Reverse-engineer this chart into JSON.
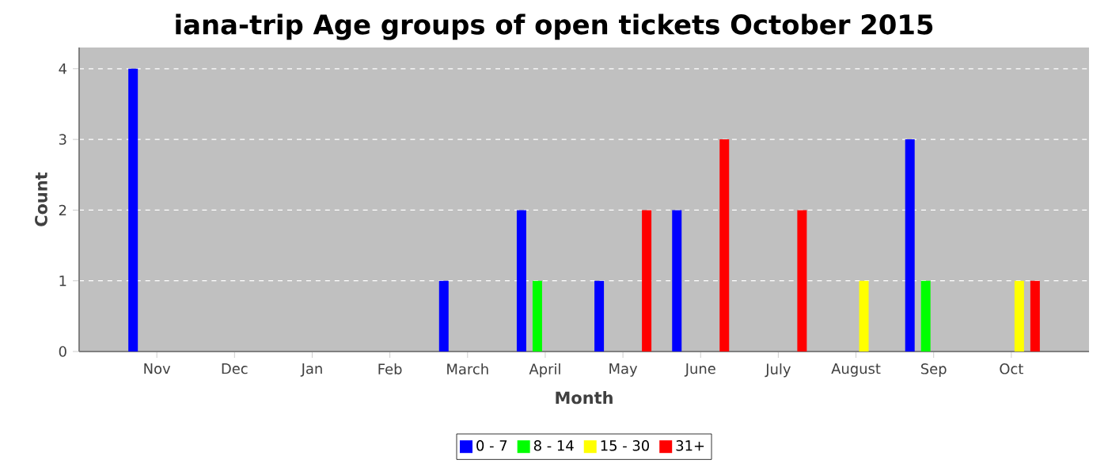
{
  "chart_data": {
    "type": "bar",
    "title": "iana-trip Age groups of open tickets October 2015",
    "xlabel": "Month",
    "ylabel": "Count",
    "categories": [
      "Nov",
      "Dec",
      "Jan",
      "Feb",
      "March",
      "April",
      "May",
      "June",
      "July",
      "August",
      "Sep",
      "Oct"
    ],
    "series": [
      {
        "name": "0 - 7",
        "color": "#0000ff",
        "values": [
          4,
          0,
          0,
          0,
          1,
          2,
          1,
          2,
          0,
          0,
          3,
          0
        ]
      },
      {
        "name": "8 - 14",
        "color": "#00ff00",
        "values": [
          0,
          0,
          0,
          0,
          0,
          1,
          0,
          0,
          0,
          0,
          1,
          0
        ]
      },
      {
        "name": "15 - 30",
        "color": "#ffff00",
        "values": [
          0,
          0,
          0,
          0,
          0,
          0,
          0,
          0,
          0,
          1,
          0,
          1
        ]
      },
      {
        "name": "31+",
        "color": "#ff0000",
        "values": [
          0,
          0,
          0,
          0,
          0,
          0,
          2,
          3,
          2,
          0,
          0,
          1
        ]
      }
    ],
    "ylim": [
      0,
      4.3
    ],
    "yticks": [
      0,
      1,
      2,
      3,
      4
    ],
    "grid": "y",
    "legend": "bottom"
  }
}
